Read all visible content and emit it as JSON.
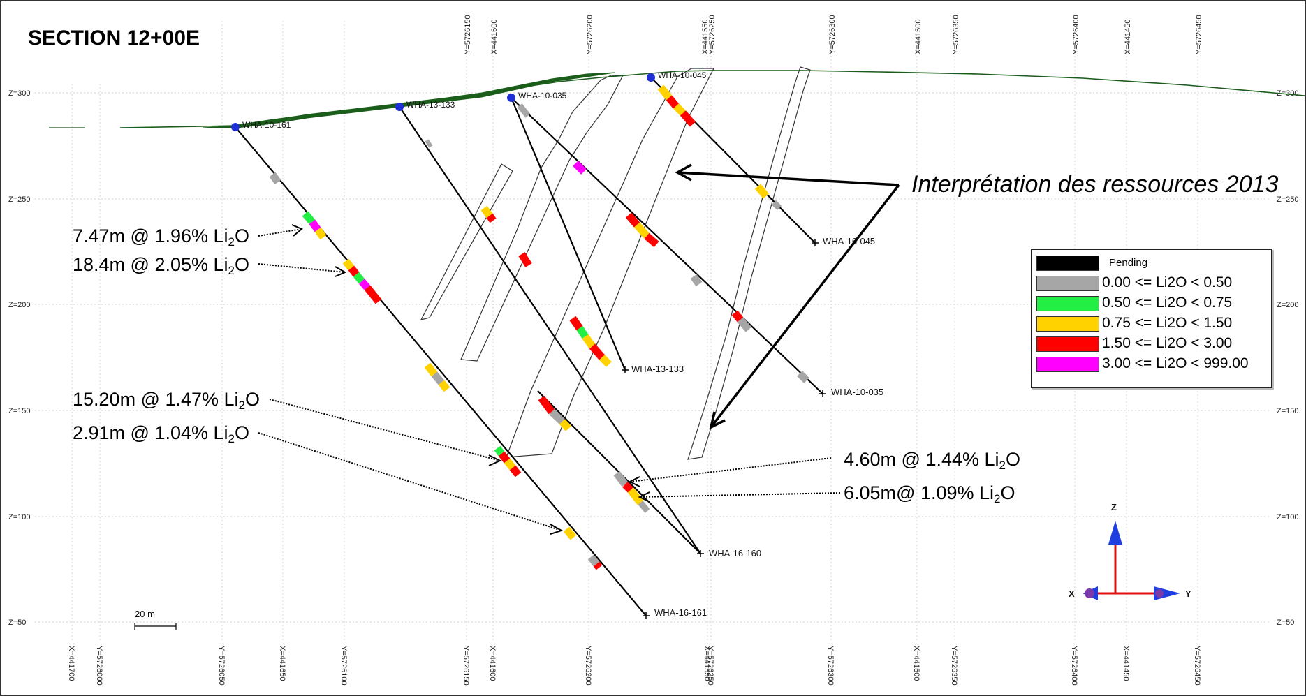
{
  "section_title": "SECTION 12+00E",
  "interpretation_label": "Interprétation des ressources 2013",
  "scale_bar_label": "20 m",
  "holes": {
    "h161": "WHA-16-161",
    "h160": "WHA-16-160",
    "h133": "WHA-13-133",
    "h035": "WHA-10-035",
    "h045": "WHA-16-045",
    "c161": "WHA-10-161",
    "c133": "WHA-13-133",
    "c035": "WHA-10-035",
    "c045": "WHA-10-045"
  },
  "annotations": {
    "a1": {
      "pre": "7.47m @ 1.96% Li",
      "sub": "2",
      "post": "O"
    },
    "a2": {
      "pre": "18.4m @ 2.05% Li",
      "sub": "2",
      "post": "O"
    },
    "a3": {
      "pre": "15.20m @ 1.47% Li",
      "sub": "2",
      "post": "O"
    },
    "a4": {
      "pre": "2.91m @ 1.04% Li",
      "sub": "2",
      "post": "O"
    },
    "a5": {
      "pre": "4.60m @ 1.44% Li",
      "sub": "2",
      "post": "O"
    },
    "a6": {
      "pre": "6.05m@ 1.09% Li",
      "sub": "2",
      "post": "O"
    }
  },
  "legend": [
    {
      "label": "Pending",
      "color": "#000000"
    },
    {
      "label": "0.00 <= Li2O < 0.50",
      "color": "#a6a6a6"
    },
    {
      "label": "0.50 <= Li2O < 0.75",
      "color": "#22ee44"
    },
    {
      "label": "0.75 <= Li2O < 1.50",
      "color": "#ffd200"
    },
    {
      "label": "1.50 <= Li2O < 3.00",
      "color": "#ff0000"
    },
    {
      "label": "3.00 <= Li2O < 999.00",
      "color": "#ff00ff"
    }
  ],
  "axes": {
    "z_labels": [
      "Z=300",
      "Z=250",
      "Z=200",
      "Z=150",
      "Z=100",
      "Z=50"
    ],
    "top_labels": [
      "Y=5726150",
      "X=441600",
      "Y=5726200",
      "X=441550",
      "Y=5726250",
      "Y=5726300",
      "X=441500",
      "Y=5726350",
      "Y=5726400",
      "X=441450",
      "Y=5726450"
    ],
    "bottom_labels": [
      "X=441700",
      "Y=5726000",
      "Y=5726050",
      "X=441650",
      "Y=5726100",
      "Y=5726150",
      "X=441600",
      "Y=5726200",
      "X=441550",
      "Y=5726250",
      "Y=5726300",
      "X=441500",
      "Y=5726350",
      "Y=5726400",
      "X=441450",
      "Y=5726450"
    ]
  },
  "gizmo": {
    "z": "Z",
    "x": "X",
    "y": "Y"
  }
}
